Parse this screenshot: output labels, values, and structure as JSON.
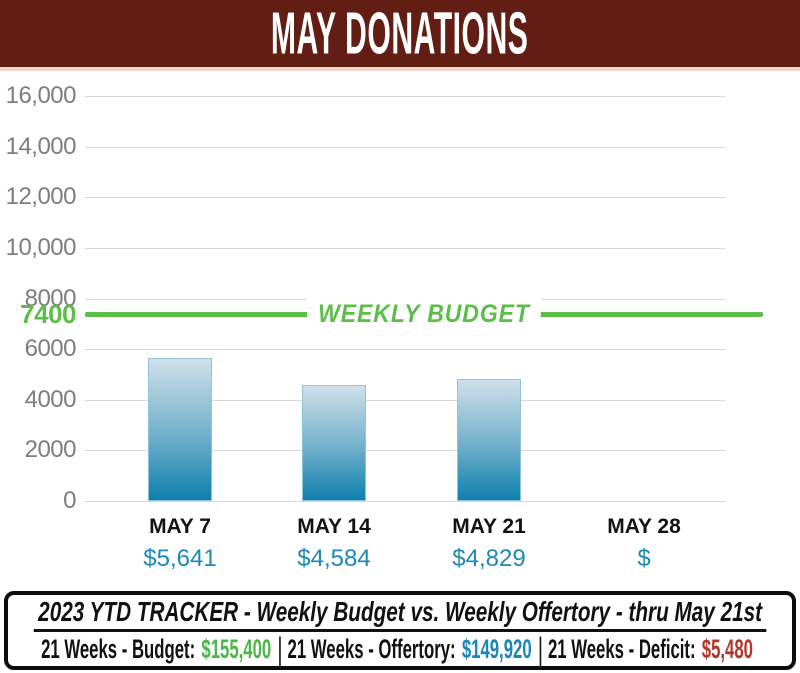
{
  "header": {
    "title": "MAY DONATIONS",
    "bg_color": "#631e14"
  },
  "chart_data": {
    "type": "bar",
    "title": "MAY DONATIONS",
    "categories": [
      "MAY 7",
      "MAY 14",
      "MAY 21",
      "MAY 28"
    ],
    "values": [
      5641,
      4584,
      4829,
      null
    ],
    "value_labels": [
      "$5,641",
      "$4,584",
      "$4,829",
      "$"
    ],
    "xlabel": "",
    "ylabel": "",
    "ylim": [
      0,
      16000
    ],
    "grid": true,
    "ytick_values": [
      16000,
      14000,
      12000,
      10000,
      8000,
      6000,
      4000,
      2000,
      0
    ],
    "ytick_labels": [
      "16,000",
      "14,000",
      "12,000",
      "10,000",
      "8000",
      "6000",
      "4000",
      "2000",
      "0"
    ],
    "budget_line": {
      "value": 7400,
      "tick_label": "7400",
      "annotation": "WEEKLY BUDGET",
      "color": "#5cbe49"
    },
    "bar_gradient": [
      "#cfe0ea",
      "#6fafcb",
      "#0e80ad"
    ],
    "bar_border_color": "#8fc3d9",
    "value_label_color": "#1e88b5"
  },
  "tracker": {
    "title": "2023 YTD TRACKER  -  Weekly Budget  vs. Weekly Offertory  -  thru May 21st",
    "separator": "|",
    "items": [
      {
        "label": "21 Weeks - Budget:",
        "value": "$155,400",
        "color": "#4cb648"
      },
      {
        "label": "21 Weeks - Offertory:",
        "value": "$149,920",
        "color": "#1b86b7"
      },
      {
        "label": "21 Weeks - Deficit:",
        "value": "$5,480",
        "color": "#b2372b"
      }
    ]
  }
}
